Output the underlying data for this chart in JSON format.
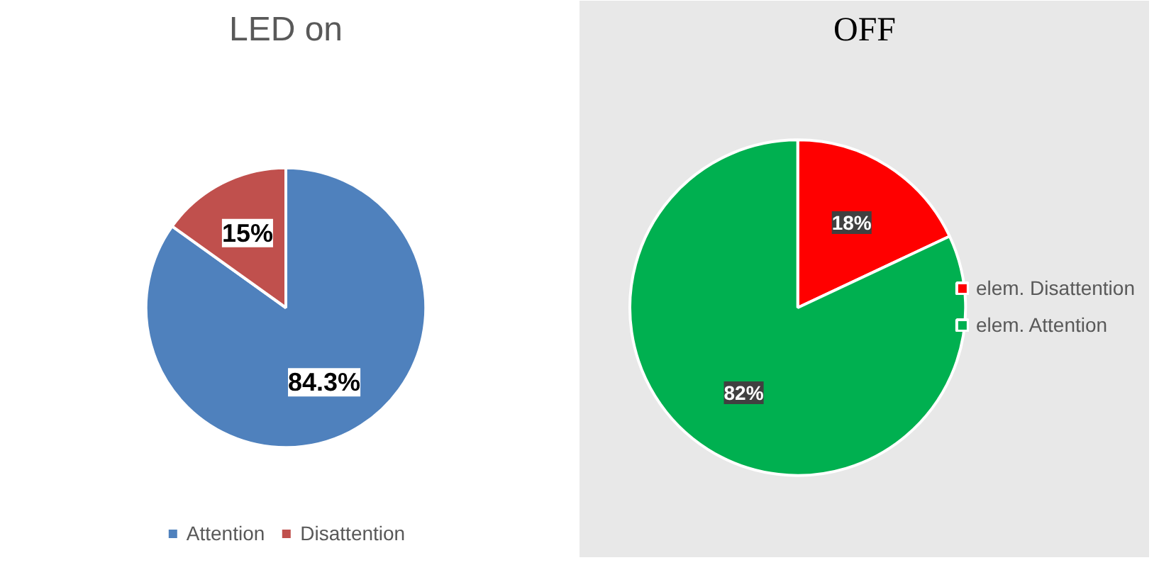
{
  "chart_data": [
    {
      "type": "pie",
      "title": "LED on",
      "categories": [
        "Attention",
        "Disattention"
      ],
      "values": [
        84.3,
        15
      ],
      "colors": [
        "#4f81bd",
        "#c0504d"
      ],
      "value_labels": [
        "84.3%",
        "15%"
      ],
      "legend": "bottom"
    },
    {
      "type": "pie",
      "title": "OFF",
      "categories": [
        "elem. Disattention",
        "elem. Attention"
      ],
      "values": [
        18,
        82
      ],
      "colors": [
        "#ff0000",
        "#00b050"
      ],
      "value_labels": [
        "18%",
        "82%"
      ],
      "legend": "right"
    }
  ]
}
